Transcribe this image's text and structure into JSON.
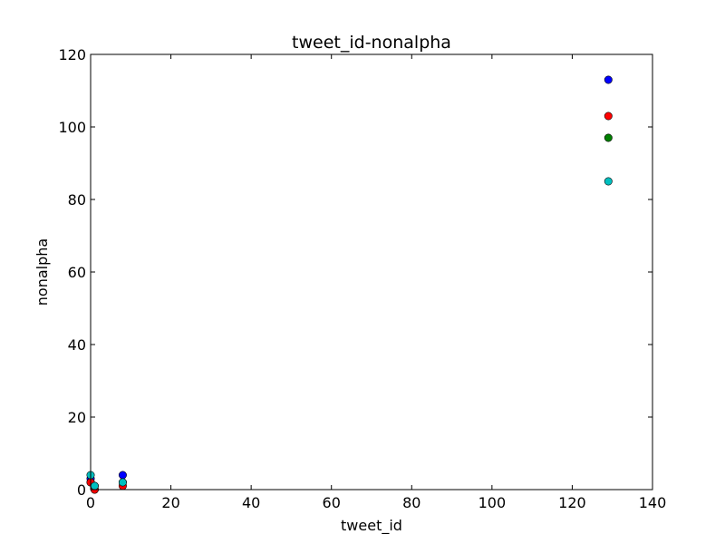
{
  "chart_data": {
    "type": "scatter",
    "title": "tweet_id-nonalpha",
    "xlabel": "tweet_id",
    "ylabel": "nonalpha",
    "xlim": [
      0,
      140
    ],
    "ylim": [
      0,
      120
    ],
    "xticks": [
      "0",
      "20",
      "40",
      "60",
      "80",
      "100",
      "120",
      "140"
    ],
    "yticks": [
      "0",
      "20",
      "40",
      "60",
      "80",
      "100",
      "120"
    ],
    "grid": false,
    "series": [
      {
        "color": "#0000ff",
        "points": [
          {
            "x": 0,
            "y": 3
          },
          {
            "x": 1,
            "y": 1
          },
          {
            "x": 8,
            "y": 4
          },
          {
            "x": 129,
            "y": 113
          }
        ]
      },
      {
        "color": "#008000",
        "points": [
          {
            "x": 0,
            "y": 2
          },
          {
            "x": 1,
            "y": 0
          },
          {
            "x": 8,
            "y": 2
          },
          {
            "x": 129,
            "y": 97
          }
        ]
      },
      {
        "color": "#ff0000",
        "points": [
          {
            "x": 0,
            "y": 2
          },
          {
            "x": 1,
            "y": 0
          },
          {
            "x": 8,
            "y": 1
          },
          {
            "x": 129,
            "y": 103
          }
        ]
      },
      {
        "color": "#00bfbf",
        "points": [
          {
            "x": 0,
            "y": 4
          },
          {
            "x": 1,
            "y": 1
          },
          {
            "x": 8,
            "y": 2
          },
          {
            "x": 129,
            "y": 85
          }
        ]
      }
    ]
  }
}
